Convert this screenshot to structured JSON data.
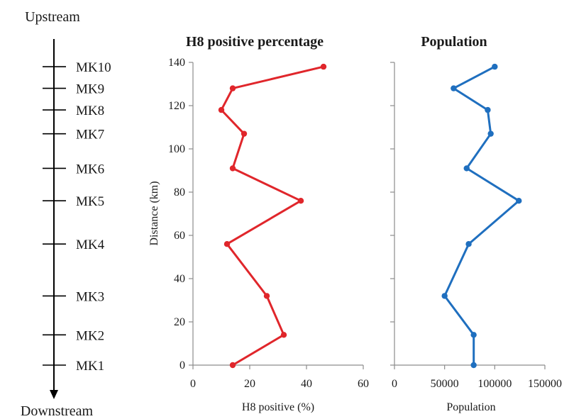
{
  "river": {
    "top_label": "Upstream",
    "bottom_label": "Downstream",
    "markers": [
      {
        "label": "MK10",
        "km": 138
      },
      {
        "label": "MK9",
        "km": 128
      },
      {
        "label": "MK8",
        "km": 118
      },
      {
        "label": "MK7",
        "km": 107
      },
      {
        "label": "MK6",
        "km": 91
      },
      {
        "label": "MK5",
        "km": 76
      },
      {
        "label": "MK4",
        "km": 56
      },
      {
        "label": "MK3",
        "km": 32
      },
      {
        "label": "MK2",
        "km": 14
      },
      {
        "label": "MK1",
        "km": 0
      }
    ]
  },
  "chart_data": [
    {
      "type": "line",
      "title": "H8 positive percentage",
      "xlabel": "H8 positive (%)",
      "ylabel": "Distance (km)",
      "xlim": [
        0,
        60
      ],
      "ylim": [
        0,
        140
      ],
      "xticks": [
        0,
        20,
        40,
        60
      ],
      "yticks": [
        0,
        20,
        40,
        60,
        80,
        100,
        120,
        140
      ],
      "color": "#e0262b",
      "grid": false,
      "points": [
        {
          "x": 14,
          "y": 0
        },
        {
          "x": 32,
          "y": 14
        },
        {
          "x": 26,
          "y": 32
        },
        {
          "x": 12,
          "y": 56
        },
        {
          "x": 38,
          "y": 76
        },
        {
          "x": 14,
          "y": 91
        },
        {
          "x": 18,
          "y": 107
        },
        {
          "x": 10,
          "y": 118
        },
        {
          "x": 14,
          "y": 128
        },
        {
          "x": 46,
          "y": 138
        }
      ]
    },
    {
      "type": "line",
      "title": "Population",
      "xlabel": "Population",
      "ylabel": "",
      "xlim": [
        0,
        150000
      ],
      "ylim": [
        0,
        140
      ],
      "xticks": [
        0,
        50000,
        100000,
        150000
      ],
      "yticks": [
        0,
        20,
        40,
        60,
        80,
        100,
        120,
        140
      ],
      "color": "#1f6fbf",
      "grid": false,
      "points": [
        {
          "x": 79000,
          "y": 0
        },
        {
          "x": 79000,
          "y": 14
        },
        {
          "x": 50000,
          "y": 32
        },
        {
          "x": 74000,
          "y": 56
        },
        {
          "x": 124000,
          "y": 76
        },
        {
          "x": 72000,
          "y": 91
        },
        {
          "x": 96000,
          "y": 107
        },
        {
          "x": 93000,
          "y": 118
        },
        {
          "x": 59000,
          "y": 128
        },
        {
          "x": 100000,
          "y": 138
        }
      ]
    }
  ]
}
